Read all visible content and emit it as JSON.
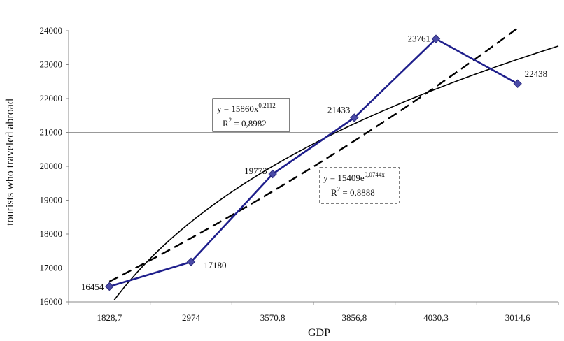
{
  "chart_data": {
    "type": "line",
    "xlabel": "GDP",
    "ylabel": "tourists who traveled abroad",
    "categories": [
      "1828,7",
      "2974",
      "3570,8",
      "3856,8",
      "4030,3",
      "3014,6"
    ],
    "ylim": [
      16000,
      24000
    ],
    "y_ticks": [
      "16000",
      "17000",
      "18000",
      "19000",
      "20000",
      "21000",
      "22000",
      "23000",
      "24000"
    ],
    "grid": "single horizontal line at 21000",
    "series": [
      {
        "values": [
          16454,
          17180,
          19773,
          21433,
          23761,
          22438
        ],
        "data_labels": [
          "16454",
          "17180",
          "19773",
          "21433",
          "23761",
          "22438"
        ],
        "color": "#1f1f8c",
        "marker": "diamond",
        "marker_color": "#4b4ba8"
      }
    ],
    "trendlines": [
      {
        "kind": "power",
        "style": "solid",
        "color": "#000000",
        "equation_prefix": "y = 15860x",
        "equation_exponent": "0,2112",
        "r2_label": "R",
        "r2_sup": "2",
        "r2_value": " = 0,8982",
        "estimates": [
          15860,
          18393,
          19911,
          21027,
          21918,
          22662,
          23312
        ]
      },
      {
        "kind": "exponential",
        "style": "dashed",
        "color": "#000000",
        "equation_prefix": "y = 15409e",
        "equation_exponent": "0,0744x",
        "r2_label": "R",
        "r2_sup": "2",
        "r2_value": " = 0,8888",
        "estimates": [
          16599,
          17881,
          19262,
          20750,
          22352,
          24078
        ]
      }
    ]
  }
}
